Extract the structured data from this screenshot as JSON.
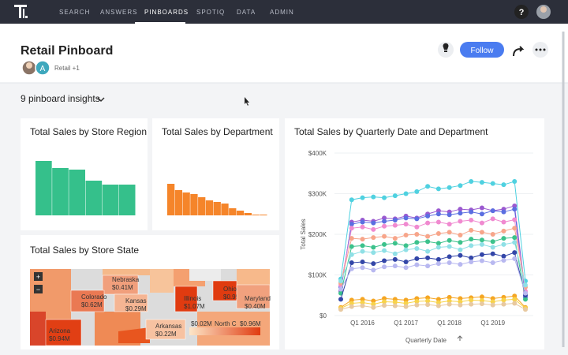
{
  "nav": {
    "items": [
      "SEARCH",
      "ANSWERS",
      "PINBOARDS",
      "SPOTIQ",
      "DATA",
      "ADMIN"
    ],
    "active_index": 2,
    "help": "?"
  },
  "header": {
    "title": "Retail Pinboard",
    "avatar_letter": "A",
    "followers": "Retail +1",
    "follow_button": "Follow"
  },
  "insights": "9 pinboard insights",
  "chart_data": [
    {
      "type": "bar",
      "title": "Total Sales by Store Region",
      "color": "#35c08b",
      "values": [
        69,
        60,
        58,
        44,
        39,
        39
      ]
    },
    {
      "type": "bar",
      "title": "Total Sales by Department",
      "color": "#f5852a",
      "values": [
        40,
        32,
        29,
        27,
        23,
        19,
        17,
        15,
        9,
        6,
        3,
        1,
        1
      ]
    },
    {
      "type": "map",
      "title": "Total Sales by Store State",
      "colors": [
        "#fde6c8",
        "#e03b10"
      ],
      "regions": [
        {
          "name": "Nebraska",
          "value": 410000,
          "value_label": "$0.41M"
        },
        {
          "name": "Colorado",
          "value": 620000,
          "value_label": "$0.62M"
        },
        {
          "name": "Kansas",
          "value": 290000,
          "value_label": "$0.29M"
        },
        {
          "name": "Illinois",
          "value": 1070000,
          "value_label": "$1.07M"
        },
        {
          "name": "Ohio",
          "value": 990000,
          "value_label": "$0.99M"
        },
        {
          "name": "Maryland",
          "value": 400000,
          "value_label": "$0.40M"
        },
        {
          "name": "Arizona",
          "value": 940000,
          "value_label": "$0.94M"
        },
        {
          "name": "Arkansas",
          "value": 220000,
          "value_label": "$0.22M"
        },
        {
          "name": "North C"
        }
      ],
      "legend": {
        "values": [
          20000,
          960000
        ],
        "labels": [
          "$0.02M",
          "$0.96M"
        ]
      }
    },
    {
      "type": "line",
      "title": "Total Sales by Quarterly Date and Department",
      "x_label": "Quarterly Date",
      "y_label": "Total Sales",
      "grid": true,
      "categories": [
        null,
        null,
        "Q1 2016",
        null,
        null,
        null,
        "Q1 2017",
        null,
        null,
        null,
        "Q1 2018",
        null,
        null,
        null,
        "Q1 2019",
        null,
        null,
        null
      ],
      "ylim": [
        0,
        400000
      ],
      "yticks": [
        {
          "value": 0,
          "label": "$0"
        },
        {
          "value": 100000,
          "label": "$100K"
        },
        {
          "value": 200000,
          "label": "$200K"
        },
        {
          "value": 300000,
          "label": "$300K"
        },
        {
          "value": 400000,
          "label": "$400K"
        }
      ],
      "series": [
        {
          "color": "#4fd1e0",
          "values": [
            90000,
            285000,
            290000,
            292000,
            290000,
            295000,
            300000,
            305000,
            318000,
            312000,
            315000,
            320000,
            330000,
            328000,
            325000,
            322000,
            330000,
            85000
          ]
        },
        {
          "color": "#9b59d0",
          "values": [
            60000,
            230000,
            235000,
            232000,
            240000,
            238000,
            245000,
            240000,
            250000,
            258000,
            255000,
            262000,
            260000,
            265000,
            258000,
            262000,
            270000,
            55000
          ]
        },
        {
          "color": "#5b6ee1",
          "values": [
            70000,
            225000,
            230000,
            228000,
            232000,
            235000,
            240000,
            238000,
            245000,
            250000,
            248000,
            252000,
            255000,
            250000,
            258000,
            255000,
            262000,
            45000
          ]
        },
        {
          "color": "#f08ad0",
          "values": [
            75000,
            215000,
            218000,
            212000,
            220000,
            222000,
            225000,
            218000,
            228000,
            230000,
            225000,
            232000,
            235000,
            228000,
            238000,
            230000,
            236000,
            60000
          ]
        },
        {
          "color": "#f7a58a",
          "values": [
            80000,
            190000,
            188000,
            192000,
            195000,
            190000,
            198000,
            200000,
            195000,
            202000,
            205000,
            198000,
            210000,
            205000,
            200000,
            208000,
            215000,
            70000
          ]
        },
        {
          "color": "#3cc28c",
          "values": [
            55000,
            170000,
            172000,
            168000,
            175000,
            178000,
            172000,
            180000,
            182000,
            178000,
            185000,
            180000,
            188000,
            186000,
            182000,
            190000,
            192000,
            40000
          ]
        },
        {
          "color": "#8fe0e6",
          "values": [
            85000,
            150000,
            158000,
            155000,
            160000,
            152000,
            162000,
            165000,
            158000,
            168000,
            170000,
            162000,
            172000,
            175000,
            168000,
            175000,
            180000,
            75000
          ]
        },
        {
          "color": "#3346a8",
          "values": [
            40000,
            130000,
            132000,
            128000,
            135000,
            138000,
            132000,
            140000,
            142000,
            138000,
            145000,
            148000,
            142000,
            150000,
            152000,
            146000,
            155000,
            50000
          ]
        },
        {
          "color": "#b8b8f0",
          "values": [
            65000,
            115000,
            118000,
            112000,
            120000,
            122000,
            118000,
            125000,
            122000,
            128000,
            130000,
            126000,
            132000,
            135000,
            130000,
            136000,
            140000,
            55000
          ]
        },
        {
          "color": "#f5a623",
          "values": [
            20000,
            38000,
            40000,
            36000,
            42000,
            40000,
            38000,
            42000,
            44000,
            40000,
            45000,
            42000,
            44000,
            46000,
            42000,
            45000,
            48000,
            20000
          ]
        },
        {
          "color": "#f8d34a",
          "values": [
            18000,
            30000,
            32000,
            28000,
            34000,
            33000,
            30000,
            35000,
            36000,
            32000,
            36000,
            34000,
            38000,
            37000,
            34000,
            38000,
            40000,
            18000
          ]
        },
        {
          "color": "#e8c9a0",
          "values": [
            15000,
            22000,
            24000,
            20000,
            25000,
            24000,
            22000,
            26000,
            27000,
            24000,
            28000,
            26000,
            28000,
            29000,
            26000,
            28000,
            30000,
            15000
          ]
        }
      ]
    }
  ]
}
